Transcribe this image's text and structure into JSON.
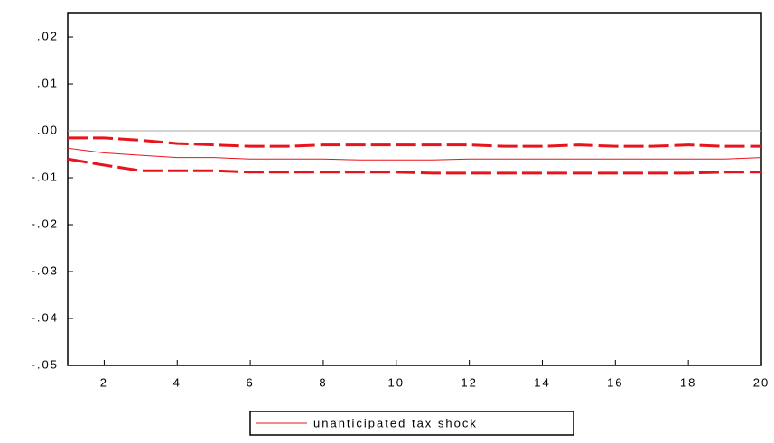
{
  "chart_data": {
    "type": "line",
    "x": [
      1,
      2,
      3,
      4,
      5,
      6,
      7,
      8,
      9,
      10,
      11,
      12,
      13,
      14,
      15,
      16,
      17,
      18,
      19,
      20
    ],
    "series": [
      {
        "name": "unanticipated tax shock",
        "color": "#e8141c",
        "style": "solid",
        "values": [
          -0.0037,
          -0.0047,
          -0.0052,
          -0.0057,
          -0.0057,
          -0.006,
          -0.006,
          -0.006,
          -0.0062,
          -0.0062,
          -0.0062,
          -0.006,
          -0.006,
          -0.006,
          -0.006,
          -0.006,
          -0.006,
          -0.006,
          -0.006,
          -0.0057
        ]
      },
      {
        "color": "#e8141c",
        "style": "dashed",
        "values": [
          -0.0015,
          -0.0015,
          -0.002,
          -0.0027,
          -0.003,
          -0.0033,
          -0.0033,
          -0.003,
          -0.003,
          -0.003,
          -0.003,
          -0.003,
          -0.0033,
          -0.0033,
          -0.003,
          -0.0033,
          -0.0033,
          -0.003,
          -0.0033,
          -0.0033
        ]
      },
      {
        "color": "#e8141c",
        "style": "dashed",
        "values": [
          -0.006,
          -0.0073,
          -0.0085,
          -0.0085,
          -0.0085,
          -0.0088,
          -0.0088,
          -0.0088,
          -0.0088,
          -0.0088,
          -0.009,
          -0.009,
          -0.009,
          -0.009,
          -0.009,
          -0.009,
          -0.009,
          -0.009,
          -0.0088,
          -0.0088
        ]
      }
    ],
    "xlim": [
      1,
      20
    ],
    "xticks": [
      2,
      4,
      6,
      8,
      10,
      12,
      14,
      16,
      18,
      20
    ],
    "ylim": [
      -0.05,
      0.0252
    ],
    "yticks": [
      {
        "value": -0.05,
        "label": "-.05"
      },
      {
        "value": -0.04,
        "label": "-.04"
      },
      {
        "value": -0.03,
        "label": "-.03"
      },
      {
        "value": -0.02,
        "label": "-.02"
      },
      {
        "value": -0.01,
        "label": "-.01"
      },
      {
        "value": 0,
        "label": ".00"
      },
      {
        "value": 0.01,
        "label": ".01"
      },
      {
        "value": 0.02,
        "label": ".02"
      }
    ],
    "zero_line": true
  }
}
